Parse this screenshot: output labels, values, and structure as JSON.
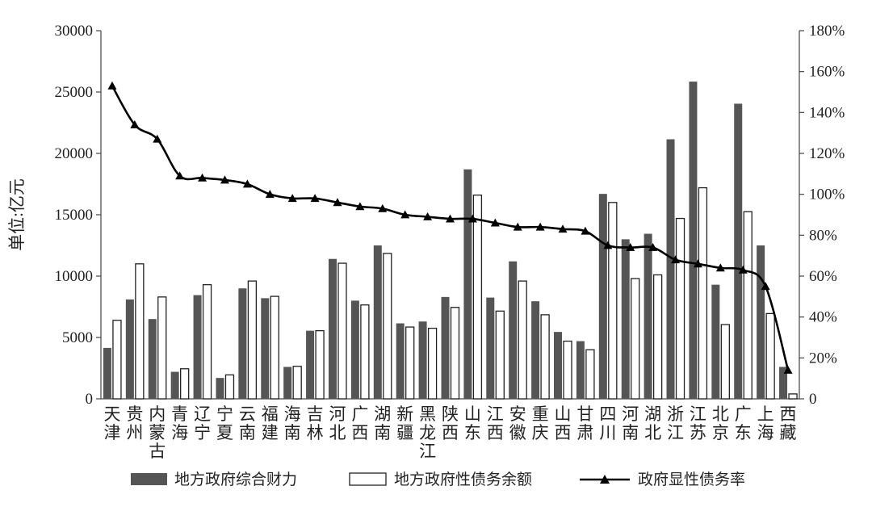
{
  "chart_data": {
    "type": "bar",
    "ylabel": "单位:亿元",
    "categories": [
      "天津",
      "贵州",
      "内蒙古",
      "青海",
      "辽宁",
      "宁夏",
      "云南",
      "福建",
      "海南",
      "吉林",
      "河北",
      "广西",
      "湖南",
      "新疆",
      "黑龙江",
      "陕西",
      "山东",
      "江西",
      "安徽",
      "重庆",
      "山西",
      "甘肃",
      "四川",
      "河南",
      "湖北",
      "浙江",
      "江苏",
      "北京",
      "广东",
      "上海",
      "西藏"
    ],
    "series": [
      {
        "name": "地方政府综合财力",
        "type": "bar",
        "axis": "left",
        "color": "#555555",
        "values": [
          4150,
          8100,
          6500,
          2200,
          8450,
          1700,
          9000,
          8200,
          2600,
          5550,
          11400,
          8000,
          12500,
          6150,
          6300,
          8300,
          18700,
          8250,
          11200,
          7950,
          5450,
          4700,
          16700,
          13000,
          13450,
          21150,
          25850,
          9300,
          24050,
          12500,
          2600
        ]
      },
      {
        "name": "地方政府性债务余额",
        "type": "bar",
        "axis": "left",
        "color": "#ffffff",
        "values": [
          6400,
          11000,
          8300,
          2450,
          9300,
          1950,
          9600,
          8350,
          2650,
          5550,
          11050,
          7650,
          11850,
          5850,
          5750,
          7450,
          16600,
          7150,
          9600,
          6850,
          4700,
          4000,
          16000,
          9800,
          10100,
          14700,
          17200,
          6050,
          15250,
          6950,
          400
        ]
      },
      {
        "name": "政府显性债务率",
        "type": "line",
        "axis": "right",
        "color": "#000000",
        "values": [
          153,
          134,
          127,
          109,
          108,
          107,
          105,
          100,
          98,
          98,
          96,
          94,
          93,
          90,
          89,
          88,
          88,
          86,
          84,
          84,
          83,
          82,
          75,
          74,
          74,
          68,
          66,
          64,
          63,
          55,
          14
        ]
      }
    ],
    "y_left": {
      "min": 0,
      "max": 30000,
      "ticks": [
        "0",
        "5000",
        "10000",
        "15000",
        "20000",
        "25000",
        "30000"
      ]
    },
    "y_right": {
      "min": 0,
      "max": 180,
      "ticks": [
        "0",
        "20%",
        "40%",
        "60%",
        "80%",
        "100%",
        "120%",
        "140%",
        "160%",
        "180%"
      ]
    },
    "legend": {
      "position": "bottom",
      "items": [
        "地方政府综合财力",
        "地方政府性债务余额",
        "政府显性债务率"
      ]
    },
    "grid": false
  }
}
